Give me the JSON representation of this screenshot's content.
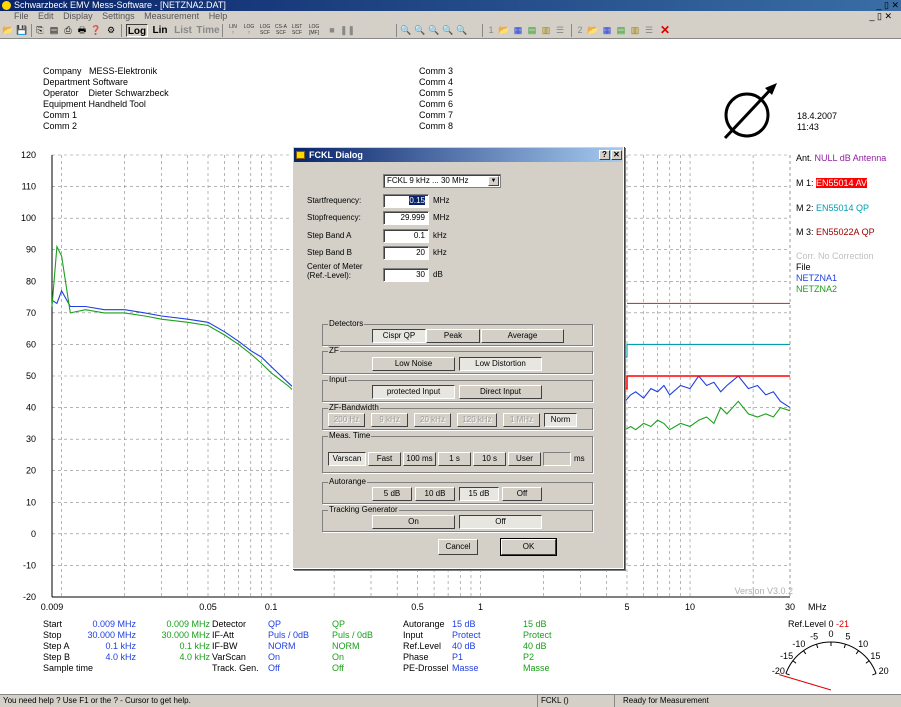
{
  "window": {
    "title": "Schwarzbeck EMV Mess-Software - [NETZNA2.DAT]",
    "controls": "_ ▯ ✕",
    "mdi_controls": "_ ▯ ✕"
  },
  "menu": [
    "File",
    "Edit",
    "Display",
    "Settings",
    "Measurement",
    "Help"
  ],
  "toolbar": {
    "log": "Log",
    "lin": "Lin",
    "list": "List",
    "time": "Time",
    "lin_top": "LIN",
    "log_top": "LOG",
    "log2_top": "LOG",
    "csa_top": "CS-A",
    "list_top": "LIST",
    "log3_top": "LOG",
    "lin_bot": "↑",
    "log_bot": "↑",
    "log2_bot": "SCF",
    "csa_bot": "SCF",
    "list_bot": "SCF",
    "log3_bot": "[MF]",
    "num1": "1",
    "num2": "2"
  },
  "header": {
    "left": [
      {
        "label": "Company",
        "value": "MESS-Elektronik"
      },
      {
        "label": "Department",
        "value": "Software"
      },
      {
        "label": "Operator",
        "value": "Dieter Schwarzbeck"
      },
      {
        "label": "Equipment",
        "value": "Handheld Tool"
      },
      {
        "label": "Comm 1",
        "value": ""
      },
      {
        "label": "Comm 2",
        "value": ""
      }
    ],
    "middle": [
      "Comm 3",
      "Comm 4",
      "Comm 5",
      "Comm 6",
      "Comm 7",
      "Comm 8"
    ],
    "date": "18.4.2007",
    "time": "11:43"
  },
  "legend": {
    "ant_label": "Ant.",
    "ant_value": "NULL dB Antenna",
    "m1_label": "M 1:",
    "m1_value": "EN55014 AV",
    "m2_label": "M 2:",
    "m2_value": "EN55014 QP",
    "m3_label": "M 3:",
    "m3_value": "EN55022A QP",
    "corr": "Corr. No Correction",
    "file": "File",
    "file1": "NETZNA1",
    "file2": "NETZNA2",
    "colors": {
      "ant": "#9020a0",
      "m1_bg": "#ff0000",
      "m2": "#00a0b0",
      "m3": "#a00000",
      "corr": "#c0c0c0",
      "netzna1": "#1f3fe0",
      "netzna2": "#1aa01a"
    }
  },
  "chart_data": {
    "type": "line",
    "xscale": "log",
    "xlim": [
      0.009,
      30
    ],
    "ylim": [
      -20,
      120
    ],
    "grid": true,
    "xlabel": "MHz",
    "ylabel": "",
    "yticks": [
      -20,
      -10,
      0,
      10,
      20,
      30,
      40,
      50,
      60,
      70,
      80,
      90,
      100,
      110,
      120
    ],
    "xtick_labels": [
      {
        "x": 0.009,
        "label": "0.009"
      },
      {
        "x": 0.05,
        "label": "0.05"
      },
      {
        "x": 0.1,
        "label": "0.1"
      },
      {
        "x": 0.5,
        "label": "0.5"
      },
      {
        "x": 1,
        "label": "1"
      },
      {
        "x": 5,
        "label": "5"
      },
      {
        "x": 10,
        "label": "10"
      },
      {
        "x": 30,
        "label": "30"
      }
    ],
    "version_text": "Version V3.0.2",
    "series": [
      {
        "name": "NETZNA1",
        "color": "#1f3fe0",
        "x": [
          0.009,
          0.0095,
          0.01,
          0.011,
          0.013,
          0.016,
          0.02,
          0.025,
          0.03,
          0.04,
          0.05,
          0.06,
          0.07,
          0.08,
          0.09,
          0.1,
          0.12,
          0.14,
          0.15,
          4.9,
          5.2,
          5.5,
          6,
          6.5,
          7,
          7.5,
          8,
          9,
          10,
          11,
          12,
          13,
          14,
          15,
          17,
          19,
          21,
          23,
          25,
          27,
          30
        ],
        "y": [
          74,
          73,
          77,
          72,
          72,
          71,
          71,
          70,
          69,
          68,
          67,
          64,
          61,
          58,
          56,
          53,
          48,
          44,
          42,
          42,
          44,
          45,
          43,
          46,
          45,
          47,
          44,
          47,
          46,
          50,
          47,
          48,
          45,
          47,
          50,
          46,
          47,
          44,
          45,
          42,
          40
        ]
      },
      {
        "name": "NETZNA2",
        "color": "#1aa01a",
        "x": [
          0.009,
          0.0095,
          0.01,
          0.011,
          0.013,
          0.016,
          0.02,
          0.025,
          0.03,
          0.04,
          0.05,
          0.06,
          0.07,
          0.08,
          0.09,
          0.1,
          0.12,
          0.14,
          0.15,
          4.9,
          5.2,
          5.5,
          6,
          6.5,
          7,
          7.5,
          8,
          9,
          10,
          11,
          12,
          13,
          14,
          15,
          17,
          19,
          21,
          23,
          25,
          27,
          30
        ],
        "y": [
          72,
          91,
          88,
          70,
          71,
          70,
          70,
          69,
          68,
          67,
          66,
          63,
          60,
          57,
          54,
          51,
          47,
          43,
          41,
          33,
          34,
          33,
          35,
          34,
          36,
          35,
          33,
          35,
          34,
          36,
          37,
          35,
          40,
          38,
          42,
          38,
          37,
          38,
          37,
          40,
          39
        ]
      },
      {
        "name": "EN55014 AV",
        "color": "#ff0000",
        "x": [
          4.9,
          5,
          5,
          30
        ],
        "y": [
          46,
          46,
          50,
          50
        ]
      },
      {
        "name": "EN55014 QP",
        "color": "#00a0b0",
        "x": [
          4.9,
          5,
          5,
          30
        ],
        "y": [
          56,
          56,
          60,
          60
        ]
      },
      {
        "name": "EN55022A QP",
        "color": "#c04040",
        "x": [
          5,
          30
        ],
        "y": [
          73,
          73
        ]
      },
      {
        "name": "NULL dB Antenna",
        "color": "#9020a0",
        "x": [
          0.009,
          30
        ],
        "y": [
          0,
          0
        ]
      }
    ]
  },
  "settings": {
    "start": {
      "label": "Start",
      "v1": "0.009 MHz",
      "v2": "0.009 MHz"
    },
    "stop": {
      "label": "Stop",
      "v1": "30.000 MHz",
      "v2": "30.000 MHz"
    },
    "stepA": {
      "label": "Step  A",
      "v1": "0.1 kHz",
      "v2": "0.1 kHz"
    },
    "stepB": {
      "label": "Step  B",
      "v1": "4.0 kHz",
      "v2": "4.0 kHz"
    },
    "sample": {
      "label": "Sample time"
    },
    "detector": {
      "label": "Detector",
      "v1": "QP",
      "v2": "QP"
    },
    "ifatt": {
      "label": "IF-Att",
      "v1": "Puls / 0dB",
      "v2": "Puls / 0dB"
    },
    "ifbw": {
      "label": "IF-BW",
      "v1": "NORM",
      "v2": "NORM"
    },
    "varscan": {
      "label": "VarScan",
      "v1": "On",
      "v2": "On"
    },
    "track": {
      "label": "Track. Gen.",
      "v1": "Off",
      "v2": "Off"
    },
    "autorange": {
      "label": "Autorange",
      "v1": "15 dB",
      "v2": "15 dB"
    },
    "input": {
      "label": "Input",
      "v1": "Protect",
      "v2": "Protect"
    },
    "reflevel": {
      "label": "Ref.Level",
      "v1": "40 dB",
      "v2": "40 dB"
    },
    "phase": {
      "label": "Phase",
      "v1": "P1",
      "v2": "P2"
    },
    "pedrossel": {
      "label": "PE-Drossel",
      "v1": "Masse",
      "v2": "Masse"
    }
  },
  "meter": {
    "label": "Ref.Level 0",
    "value": "-21",
    "scale": [
      "-20",
      "-15",
      "-10",
      "-5",
      "0",
      "5",
      "10",
      "15",
      "20"
    ],
    "needle_value": -21
  },
  "dialog": {
    "title": "FCKL Dialog",
    "help_btn": "?",
    "close_btn": "✕",
    "range_select": "FCKL 9 kHz ... 30 MHz",
    "fields": [
      {
        "label": "Startfrequency:",
        "value": "0.15",
        "unit": "MHz"
      },
      {
        "label": "Stopfrequency:",
        "value": "29.999",
        "unit": "MHz"
      },
      {
        "label": "Step Band A",
        "value": "0.1",
        "unit": "kHz"
      },
      {
        "label": "Step Band B",
        "value": "20",
        "unit": "kHz"
      }
    ],
    "center_label1": "Center of Meter",
    "center_label2": "(Ref.-Level):",
    "center_value": "30",
    "center_unit": "dB",
    "detectors": {
      "label": "Detectors",
      "cispr": "Cispr QP",
      "peak": "Peak",
      "average": "Average"
    },
    "zf": {
      "label": "ZF",
      "low_noise": "Low Noise",
      "low_distortion": "Low Distortion"
    },
    "input": {
      "label": "Input",
      "protected": "protected Input",
      "direct": "Direct Input"
    },
    "bw": {
      "label": "ZF-Bandwidth",
      "b200": "200 Hz",
      "b9k": "9 kHz",
      "b20k": "20 kHz",
      "b120k": "120 kHz",
      "b1m": "1 MHz",
      "norm": "Norm"
    },
    "meas": {
      "label": "Meas. Time",
      "varscan": "Varscan",
      "fast": "Fast",
      "t100": "100 ms",
      "t1": "1 s",
      "t10": "10 s",
      "user": "User",
      "ms": "ms"
    },
    "autorange": {
      "label": "Autorange",
      "a5": "5 dB",
      "a10": "10 dB",
      "a15": "15 dB",
      "off": "Off"
    },
    "tracking": {
      "label": "Tracking Generator",
      "on": "On",
      "off": "Off"
    },
    "cancel": "Cancel",
    "ok": "OK"
  },
  "status": {
    "help": "You need help ? Use F1 or the ? - Cursor to get help.",
    "mode": "FCKL ()",
    "ready": "Ready for Measurement"
  }
}
